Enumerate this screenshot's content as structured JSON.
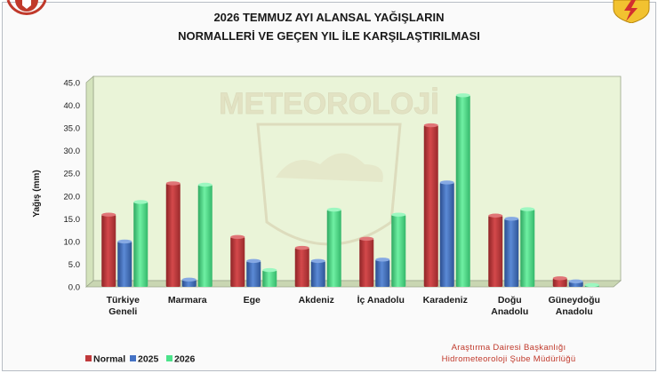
{
  "title_line1": "2026 TEMMUZ AYI ALANSAL YAĞIŞLARIN",
  "title_line2": "NORMALLERİ VE GEÇEN YIL İLE KARŞILAŞTIRILMASI",
  "watermark_text": "METEOROLOJİ",
  "credit_line1": "Araştırma Dairesi Başkanlığı",
  "credit_line2": "Hidrometeoroloji Şube Müdürlüğü",
  "colors": {
    "normal": "#c0393b",
    "y2025": "#4472c4",
    "y2026": "#4be38a",
    "plot_bg": "#eaf4d8"
  },
  "chart_data": {
    "type": "bar",
    "ylabel": "Yağış (mm)",
    "ylim": [
      0,
      45
    ],
    "yticks": [
      "0.0",
      "5.0",
      "10.0",
      "15.0",
      "20.0",
      "25.0",
      "30.0",
      "35.0",
      "40.0",
      "45.0"
    ],
    "categories": [
      [
        "Türkiye",
        "Geneli"
      ],
      [
        "Marmara"
      ],
      [
        "Ege"
      ],
      [
        "Akdeniz"
      ],
      [
        "İç Anadolu"
      ],
      [
        "Karadeniz"
      ],
      [
        "Doğu",
        "Anadolu"
      ],
      [
        "Güneydoğu",
        "Anadolu"
      ]
    ],
    "series": [
      {
        "name": "Normal",
        "values": [
          15.9,
          22.8,
          11.0,
          8.6,
          10.6,
          35.6,
          15.7,
          1.9
        ]
      },
      {
        "name": "2025",
        "values": [
          10.0,
          1.6,
          5.7,
          5.7,
          6.0,
          23.0,
          15.0,
          1.2
        ]
      },
      {
        "name": "2026",
        "values": [
          18.7,
          22.5,
          3.7,
          17.0,
          15.9,
          42.2,
          17.1,
          0.4
        ]
      }
    ],
    "legend_position": "bottom-left",
    "grid": false
  }
}
